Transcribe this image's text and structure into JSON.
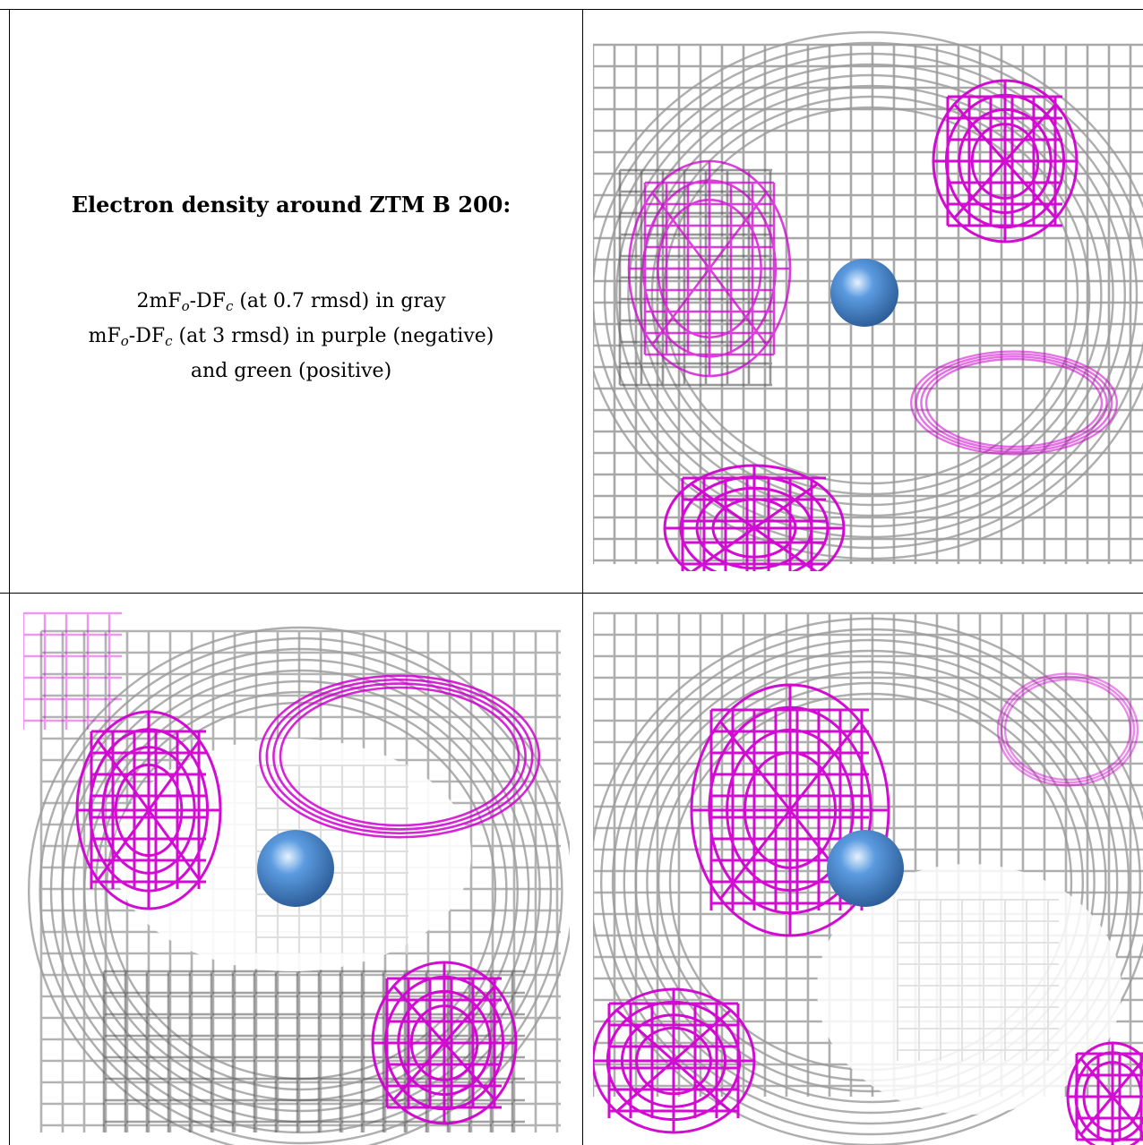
{
  "caption": {
    "title": "Electron density around ZTM B 200:",
    "line1": {
      "prefix": "2mF",
      "sub1": "o",
      "mid": "-DF",
      "sub2": "c",
      "suffix": " (at 0.7 rmsd) in gray"
    },
    "line2": {
      "prefix": "mF",
      "sub1": "o",
      "mid": "-DF",
      "sub2": "c",
      "suffix": " (at 3 rmsd) in purple (negative)"
    },
    "line3": "and green (positive)"
  },
  "colors": {
    "map_2fofc": "#9a9a9a",
    "map_2fofc_dark": "#555555",
    "map_fofc_negative": "#d000d0",
    "map_fofc_positive": "#00c000",
    "atom": "#5b9be0"
  },
  "panels": [
    {
      "view": "top-right"
    },
    {
      "view": "bottom-left"
    },
    {
      "view": "bottom-right"
    }
  ]
}
